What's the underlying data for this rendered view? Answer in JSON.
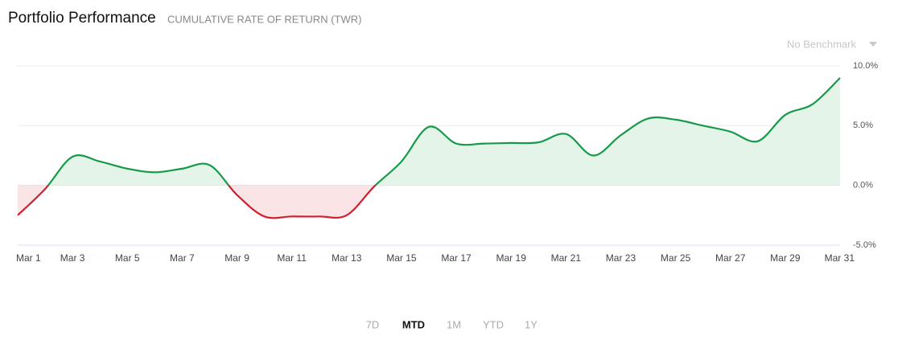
{
  "chart_data": {
    "type": "line",
    "title": "Portfolio Performance",
    "subtitle": "CUMULATIVE RATE OF RETURN (TWR)",
    "benchmark": "No Benchmark",
    "categories": [
      "Mar 1",
      null,
      "Mar 3",
      null,
      "Mar 5",
      null,
      "Mar 7",
      null,
      "Mar 9",
      null,
      "Mar 11",
      null,
      "Mar 13",
      null,
      "Mar 15",
      null,
      "Mar 17",
      null,
      "Mar 19",
      null,
      "Mar 21",
      null,
      "Mar 23",
      null,
      "Mar 25",
      null,
      "Mar 27",
      null,
      "Mar 29",
      null,
      "Mar 31"
    ],
    "values": [
      -2.5,
      -0.3,
      2.4,
      2.0,
      1.4,
      1.1,
      1.4,
      1.7,
      -0.8,
      -2.6,
      -2.6,
      -2.6,
      -2.5,
      -0.1,
      2.0,
      4.9,
      3.5,
      3.5,
      3.55,
      3.6,
      4.3,
      2.5,
      4.2,
      5.6,
      5.5,
      5.0,
      4.5,
      3.7,
      5.9,
      6.8,
      9.0
    ],
    "positive_color": "#159a4a",
    "negative_color": "#d21f2f",
    "positive_fill": "#e5f4e8",
    "negative_fill": "#fbe4e5",
    "ylim": [
      -5,
      10
    ],
    "yticks": [
      {
        "value": -5,
        "label": "-5.0%"
      },
      {
        "value": 0,
        "label": "0.0%"
      },
      {
        "value": 5,
        "label": "5.0%"
      },
      {
        "value": 10,
        "label": "10.0%"
      }
    ],
    "grid": true,
    "ranges": [
      "7D",
      "MTD",
      "1M",
      "YTD",
      "1Y"
    ],
    "selected_range": 1
  }
}
